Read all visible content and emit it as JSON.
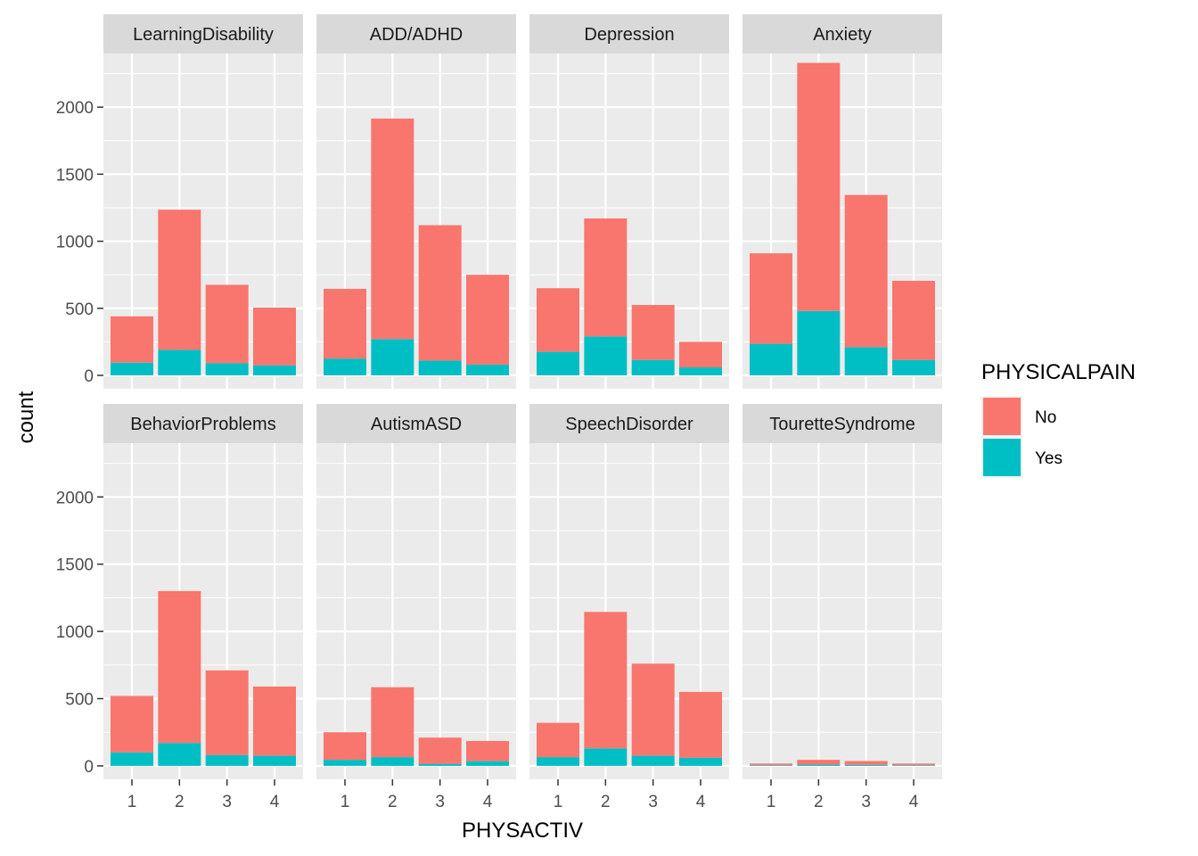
{
  "chart_data": {
    "type": "bar",
    "stacked": true,
    "xlabel": "PHYSACTIV",
    "ylabel": "count",
    "categories": [
      "1",
      "2",
      "3",
      "4"
    ],
    "yticks": [
      0,
      500,
      1000,
      1500,
      2000
    ],
    "ylim": [
      -100,
      2400
    ],
    "legend": {
      "title": "PHYSICALPAIN",
      "placement": "right",
      "entries": [
        {
          "name": "No",
          "color": "#F8766D"
        },
        {
          "name": "Yes",
          "color": "#00BFC4"
        }
      ]
    },
    "facets": [
      {
        "name": "LearningDisability",
        "no": [
          345,
          1045,
          585,
          430
        ],
        "yes": [
          95,
          190,
          90,
          75
        ]
      },
      {
        "name": "ADD/ADHD",
        "no": [
          520,
          1645,
          1010,
          670
        ],
        "yes": [
          125,
          270,
          110,
          80
        ]
      },
      {
        "name": "Depression",
        "no": [
          475,
          880,
          410,
          190
        ],
        "yes": [
          175,
          290,
          115,
          60
        ]
      },
      {
        "name": "Anxiety",
        "no": [
          675,
          1850,
          1135,
          590
        ],
        "yes": [
          235,
          480,
          210,
          115
        ]
      },
      {
        "name": "BehaviorProblems",
        "no": [
          420,
          1130,
          630,
          515
        ],
        "yes": [
          100,
          170,
          80,
          75
        ]
      },
      {
        "name": "AutismASD",
        "no": [
          205,
          520,
          195,
          150
        ],
        "yes": [
          45,
          65,
          15,
          35
        ]
      },
      {
        "name": "SpeechDisorder",
        "no": [
          255,
          1015,
          685,
          490
        ],
        "yes": [
          65,
          130,
          75,
          60
        ]
      },
      {
        "name": "TouretteSyndrome",
        "no": [
          12,
          35,
          28,
          12
        ],
        "yes": [
          5,
          10,
          8,
          5
        ]
      }
    ]
  }
}
